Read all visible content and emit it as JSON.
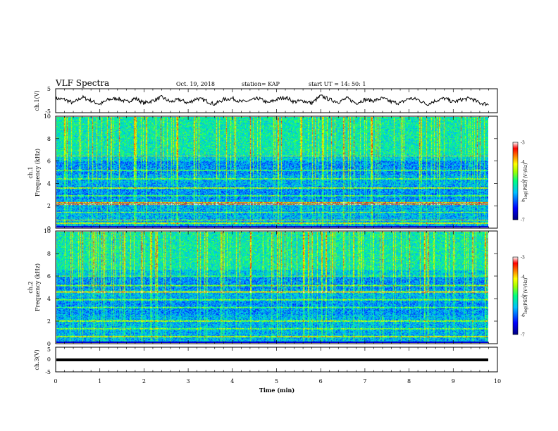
{
  "header": {
    "title": "VLF Spectra",
    "date": "Oct. 19, 2018",
    "station": "station= KAP",
    "start": "start  UT =   14: 50: 1"
  },
  "colorbar_label": "log(PSD) (V²/Hz)",
  "chart_data": [
    {
      "type": "line",
      "panel": "ch1-waveform",
      "ylabel": "ch.1(V)",
      "ylim": [
        -5,
        5
      ],
      "yticks": [
        5,
        -5
      ],
      "xlim": [
        0,
        10
      ],
      "xlabel": "",
      "series": [
        {
          "x": [
            0,
            0.2,
            0.4,
            0.6,
            0.8,
            1.0,
            1.2,
            1.4,
            1.6,
            1.8,
            2.0,
            2.2,
            2.4,
            2.6,
            2.8,
            3.0,
            3.2,
            3.4,
            3.6,
            3.8,
            4.0,
            4.2,
            4.4,
            4.6,
            4.8,
            5.0,
            5.2,
            5.4,
            5.6,
            5.8,
            6.0,
            6.2,
            6.4,
            6.6,
            6.8,
            7.0,
            7.2,
            7.4,
            7.6,
            7.8,
            8.0,
            8.2,
            8.4,
            8.6,
            8.8,
            9.0,
            9.2,
            9.4,
            9.6,
            9.8
          ],
          "y": [
            1,
            0.5,
            -1,
            1.5,
            0,
            -1.5,
            0.5,
            1,
            -0.5,
            1,
            -1,
            0,
            1.5,
            -0.5,
            0.5,
            -1,
            1,
            0,
            -1.5,
            0.5,
            1,
            -0.5,
            0,
            1,
            -1,
            0.5,
            1.5,
            -0.5,
            0,
            -1,
            2,
            0.5,
            -0.5,
            1,
            -1,
            0.5,
            0,
            1,
            -0.5,
            -1,
            1,
            0.5,
            -1.5,
            0,
            1,
            -0.5,
            0.5,
            1,
            -1,
            -1.5
          ]
        }
      ]
    },
    {
      "type": "heatmap",
      "panel": "ch1-spectrogram",
      "ylabel": "ch.1\nFrequency (kHz)",
      "ylim": [
        0,
        10
      ],
      "yticks": [
        0,
        2,
        4,
        6,
        8,
        10
      ],
      "xlim": [
        0,
        9.8
      ],
      "value_range": [
        -7,
        -3
      ],
      "colorbar_ticks": [
        -3,
        -4,
        -5,
        -6,
        -7
      ]
    },
    {
      "type": "heatmap",
      "panel": "ch2-spectrogram",
      "ylabel": "ch.2\nFrequency (kHz)",
      "ylim": [
        0,
        10
      ],
      "yticks": [
        0,
        2,
        4,
        6,
        8,
        10
      ],
      "xlim": [
        0,
        9.8
      ],
      "value_range": [
        -7,
        -3
      ],
      "colorbar_ticks": [
        -3,
        -4,
        -5,
        -6,
        -7
      ]
    },
    {
      "type": "line",
      "panel": "ch3-waveform",
      "ylabel": "ch.3(V)",
      "ylim": [
        -5,
        5
      ],
      "yticks": [
        5,
        0,
        -5
      ],
      "xlim": [
        0,
        10
      ],
      "xlabel": "Time (min)",
      "xticks": [
        0,
        1,
        2,
        3,
        4,
        5,
        6,
        7,
        8,
        9,
        10
      ],
      "series": [
        {
          "x": [
            0,
            9.8
          ],
          "y": [
            -1.5,
            -1.5
          ]
        }
      ]
    }
  ]
}
